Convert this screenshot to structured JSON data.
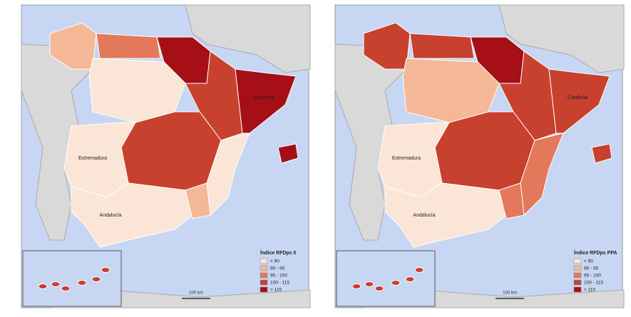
{
  "maps": [
    {
      "legend": {
        "title": "Índice RFDpc €",
        "items": [
          {
            "label": "< 90",
            "color": "#fbe5d6"
          },
          {
            "label": "90 - 95",
            "color": "#f4b896"
          },
          {
            "label": "95 - 100",
            "color": "#e3785a"
          },
          {
            "label": "100 - 115",
            "color": "#c8402e"
          },
          {
            "label": "> 115",
            "color": "#a50f15"
          }
        ]
      },
      "region_colors": [
        "#f4b896",
        "#e3785a",
        "#a50f15",
        "#fbe5d6",
        "#c8402e",
        "#a50f15",
        "#c8402e",
        "#fbe5d6",
        "#fbe5d6",
        "#fbe5d6",
        "#f4b896",
        "#a50f15"
      ],
      "labels": [
        "Extremadura",
        "Andalucía",
        "Cataluña"
      ],
      "scale": "100 km"
    },
    {
      "legend": {
        "title": "Índice RFDpc PPA",
        "items": [
          {
            "label": "< 90",
            "color": "#fbe5d6"
          },
          {
            "label": "90 - 95",
            "color": "#f4b896"
          },
          {
            "label": "95 - 100",
            "color": "#e3785a"
          },
          {
            "label": "100 - 115",
            "color": "#c8402e"
          },
          {
            "label": "> 115",
            "color": "#a50f15"
          }
        ]
      },
      "region_colors": [
        "#c8402e",
        "#c8402e",
        "#a50f15",
        "#f4b896",
        "#c8402e",
        "#c8402e",
        "#c8402e",
        "#e3785a",
        "#fbe5d6",
        "#fbe5d6",
        "#e3785a",
        "#c8402e"
      ],
      "labels": [
        "Extremadura",
        "Andalucía",
        "Cataluña"
      ],
      "scale": "100 km"
    }
  ]
}
